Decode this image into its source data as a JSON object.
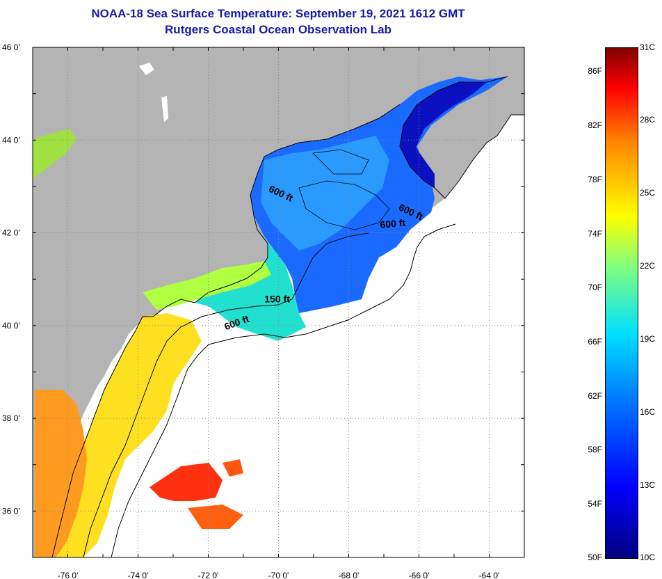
{
  "header": {
    "title_line1": "NOAA-18 Sea Surface Temperature:  September 19, 2021 1612 GMT",
    "title_line2": "Rutgers Coastal Ocean Observation Lab"
  },
  "map": {
    "lat_labels": [
      "46 0'",
      "44 0'",
      "42 0'",
      "40 0'",
      "38 0'",
      "36 0'"
    ],
    "lon_labels": [
      "-76 0'",
      "-74 0'",
      "-72 0'",
      "-70 0'",
      "-68 0'",
      "-66 0'",
      "-64 0'"
    ],
    "depth_labels": [
      {
        "text": "600 ft",
        "lon": -70.3,
        "lat": 42.9
      },
      {
        "text": "600 ft",
        "lon": -66.6,
        "lat": 42.5
      },
      {
        "text": "600 ft",
        "lon": -67.1,
        "lat": 42.1
      },
      {
        "text": "150 ft",
        "lon": -70.4,
        "lat": 40.5
      },
      {
        "text": "600 ft",
        "lon": -71.5,
        "lat": 39.9
      }
    ],
    "colors": {
      "land": "#b4b4b4",
      "ocean_no_data": "#ffffff",
      "grid": "#888888",
      "title": "#1a1aa8"
    }
  },
  "colorbar": {
    "fahrenheit_labels": [
      "86F",
      "82F",
      "78F",
      "74F",
      "70F",
      "66F",
      "62F",
      "58F",
      "54F",
      "50F"
    ],
    "celsius_labels": [
      "31C",
      "28C",
      "25C",
      "22C",
      "19C",
      "16C",
      "13C",
      "10C"
    ]
  }
}
